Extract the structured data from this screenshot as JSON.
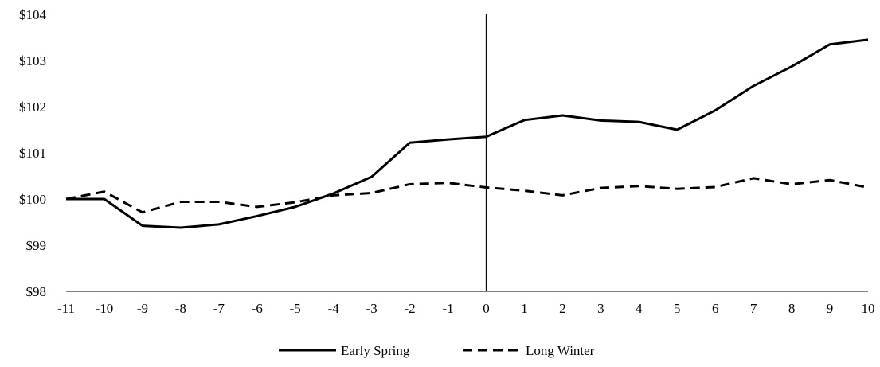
{
  "chart_data": {
    "type": "line",
    "title": "",
    "xlabel": "",
    "ylabel": "",
    "x": [
      -11,
      -10,
      -9,
      -8,
      -7,
      -6,
      -5,
      -4,
      -3,
      -2,
      -1,
      0,
      1,
      2,
      3,
      4,
      5,
      6,
      7,
      8,
      9,
      10
    ],
    "x_tick_labels": [
      "-11",
      "-10",
      "-9",
      "-8",
      "-7",
      "-6",
      "-5",
      "-4",
      "-3",
      "-2",
      "-1",
      "0",
      "1",
      "2",
      "3",
      "4",
      "5",
      "6",
      "7",
      "8",
      "9",
      "10"
    ],
    "ylim": [
      98,
      104
    ],
    "y_ticks": [
      98,
      99,
      100,
      101,
      102,
      103,
      104
    ],
    "y_tick_labels": [
      "$98",
      "$99",
      "$100",
      "$101",
      "$102",
      "$103",
      "$104"
    ],
    "vertical_reference_line_x": 0,
    "grid": false,
    "legend_position": "bottom",
    "series": [
      {
        "name": "Early Spring",
        "line_style": "solid",
        "color": "#000000",
        "values": [
          100.0,
          100.0,
          99.42,
          99.38,
          99.45,
          99.63,
          99.83,
          100.12,
          100.48,
          101.22,
          101.29,
          101.35,
          101.71,
          101.81,
          101.7,
          101.67,
          101.5,
          101.92,
          102.45,
          102.87,
          103.35,
          103.45
        ]
      },
      {
        "name": "Long Winter",
        "line_style": "dashed",
        "color": "#000000",
        "values": [
          100.0,
          100.16,
          99.71,
          99.94,
          99.94,
          99.83,
          99.93,
          100.08,
          100.13,
          100.32,
          100.35,
          100.25,
          100.18,
          100.08,
          100.24,
          100.28,
          100.22,
          100.26,
          100.45,
          100.32,
          100.41,
          100.25
        ]
      }
    ]
  }
}
